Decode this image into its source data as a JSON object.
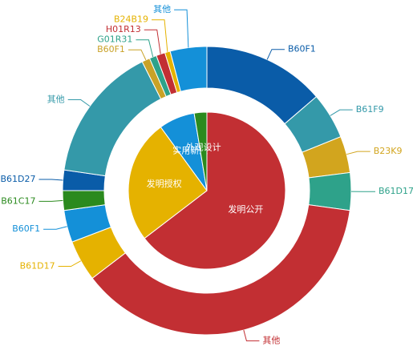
{
  "chart_data": {
    "type": "nested-pie",
    "inner": {
      "categories": [
        "发明公开",
        "发明授权",
        "实用新型",
        "外观设计"
      ],
      "values": [
        64.6,
        25.4,
        7.4,
        2.6
      ],
      "colors": [
        "#c22f33",
        "#e5b200",
        "#1490d8",
        "#2b8a1e"
      ]
    },
    "outer": {
      "categories": [
        "B60F1",
        "B61F9",
        "B23K9",
        "B61D17",
        "其他",
        "B61D17",
        "B60F1",
        "B61C17",
        "B61D27",
        "其他",
        "B60F1",
        "G01R31",
        "H01R13",
        "B24B19",
        "其他"
      ],
      "values": [
        13.7,
        5.2,
        4.1,
        4.2,
        37.4,
        4.6,
        3.6,
        2.2,
        2.3,
        15.3,
        0.9,
        0.8,
        1.0,
        0.6,
        4.1
      ],
      "colors": [
        "#0a5ca8",
        "#3499a9",
        "#d2a51e",
        "#2ea28a",
        "#c22f33",
        "#e5b200",
        "#1490d8",
        "#2b8a1e",
        "#0a5ca8",
        "#3499a9",
        "#c9a227",
        "#2ea28a",
        "#c22f33",
        "#e5b200",
        "#1490d8"
      ]
    }
  }
}
